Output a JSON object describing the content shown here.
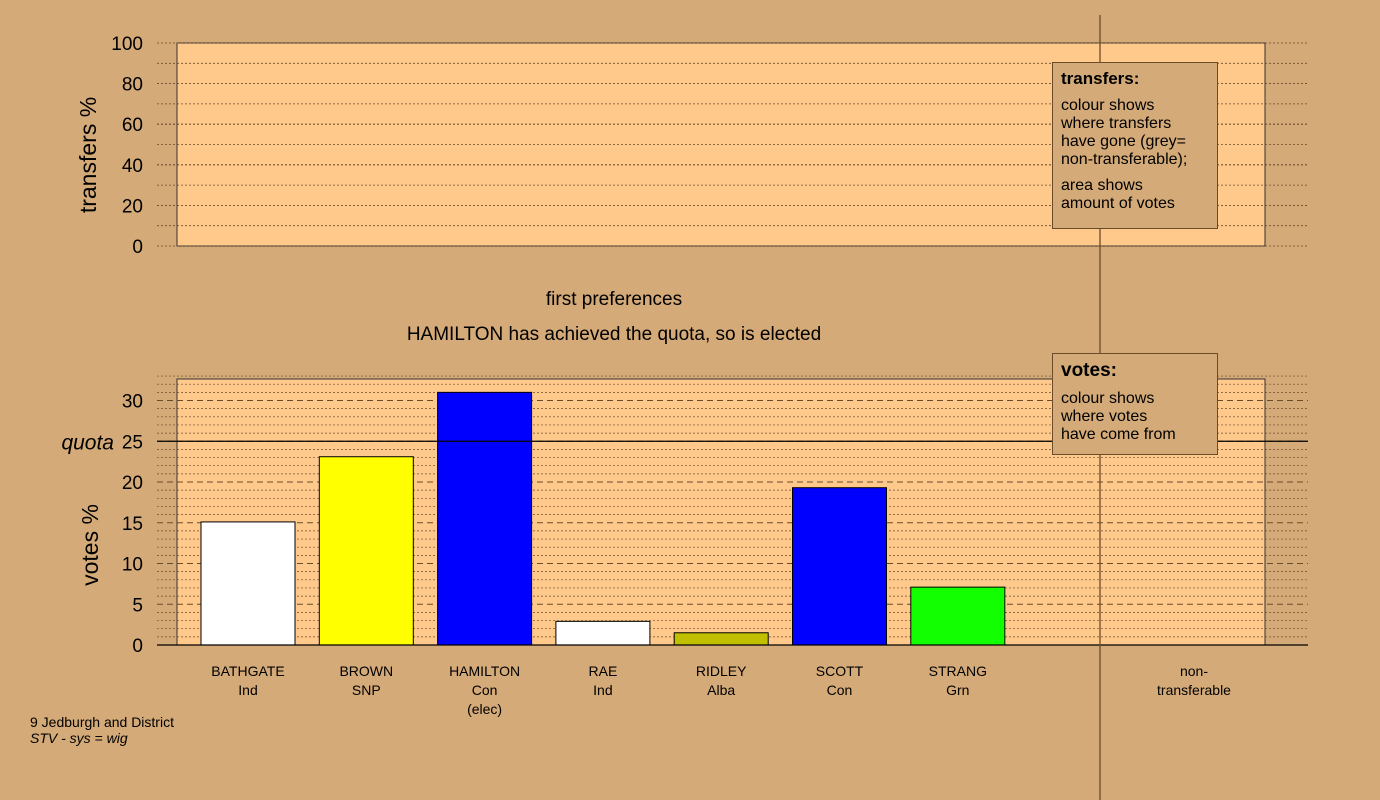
{
  "chart_data": [
    {
      "type": "bar",
      "ylabel": "transfers %",
      "ylim": [
        0,
        100
      ],
      "yticks": [
        0,
        20,
        40,
        60,
        80,
        100
      ],
      "categories": [],
      "values": [],
      "grid": true
    },
    {
      "type": "bar",
      "title": "first preferences",
      "subtitle": "HAMILTON has achieved the quota, so is elected",
      "ylabel": "votes %",
      "ylim": [
        0,
        32.5
      ],
      "yticks": [
        0,
        5,
        10,
        15,
        20,
        25,
        30
      ],
      "quota": {
        "label": "quota",
        "value": 25
      },
      "grid": true,
      "categories": [
        {
          "name": "BATHGATE",
          "party": "Ind",
          "note": ""
        },
        {
          "name": "BROWN",
          "party": "SNP",
          "note": ""
        },
        {
          "name": "HAMILTON",
          "party": "Con",
          "note": "(elec)"
        },
        {
          "name": "RAE",
          "party": "Ind",
          "note": ""
        },
        {
          "name": "RIDLEY",
          "party": "Alba",
          "note": ""
        },
        {
          "name": "SCOTT",
          "party": "Con",
          "note": ""
        },
        {
          "name": "STRANG",
          "party": "Grn",
          "note": ""
        }
      ],
      "values": [
        15.1,
        23.1,
        31.0,
        2.9,
        1.5,
        19.3,
        7.1
      ],
      "colors": [
        "#ffffff",
        "#ffff00",
        "#0000ff",
        "#ffffff",
        "#c0c000",
        "#0000ff",
        "#11ff00"
      ],
      "extra_category": {
        "line1": "non-",
        "line2": "transferable",
        "value": 0
      }
    }
  ],
  "legends": {
    "transfers": {
      "title": "transfers:",
      "lines1": [
        "colour shows",
        "where transfers",
        "have gone (grey=",
        "non-transferable);"
      ],
      "lines2": [
        "area shows",
        "amount of votes"
      ]
    },
    "votes": {
      "title": "votes:",
      "lines": [
        "colour shows",
        "where votes",
        "have come from"
      ]
    }
  },
  "footer": {
    "line1": "9 Jedburgh and District",
    "line2": "STV - sys = wig"
  },
  "colors": {
    "background": "#d4aa78",
    "plot_bg": "#ffc98c"
  }
}
